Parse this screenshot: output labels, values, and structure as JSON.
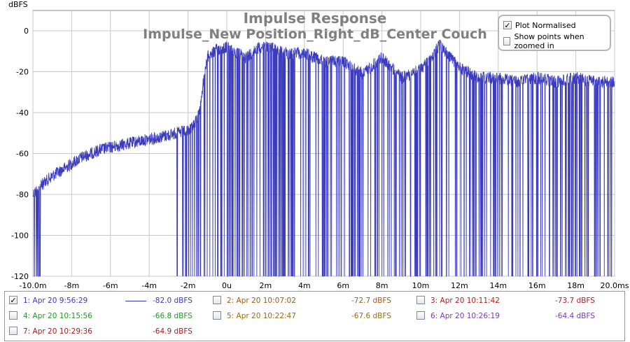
{
  "chart_data": {
    "type": "line",
    "title": "Impulse Response",
    "subtitle": "Impulse_New Position_Right_dB_Center Couch",
    "ylabel": "dBFS",
    "xlabel": "",
    "xlim": [
      -10,
      20
    ],
    "ylim": [
      -120,
      5
    ],
    "x_ticks": [
      -10,
      -8,
      -6,
      -4,
      -2,
      0,
      2,
      4,
      6,
      8,
      10,
      12,
      14,
      16,
      18,
      20
    ],
    "x_tick_labels": [
      "-10.0m",
      "-8m",
      "-6m",
      "-4m",
      "-2m",
      "0u",
      "2m",
      "4m",
      "6m",
      "8m",
      "10m",
      "12m",
      "14m",
      "16m",
      "18m",
      "20.0ms"
    ],
    "y_ticks": [
      0,
      -20,
      -40,
      -60,
      -80,
      -100,
      -120
    ],
    "y_tick_labels": [
      "0",
      "-20",
      "-40",
      "-60",
      "-80",
      "-100",
      "-120"
    ],
    "grid": true,
    "series": [
      {
        "color": "#3b3bc0",
        "envelope": {
          "x": [
            -10,
            -9.5,
            -9,
            -8.5,
            -8,
            -7.5,
            -7,
            -6.5,
            -6,
            -5.5,
            -5,
            -4.5,
            -4,
            -3.5,
            -3,
            -2.6,
            -2,
            -1.5,
            -1,
            -0.5,
            0,
            0.5,
            1,
            1.5,
            2,
            3,
            4,
            5,
            6,
            7,
            8,
            9,
            10,
            11,
            12,
            13,
            14,
            15,
            16,
            17,
            18,
            19,
            20
          ],
          "y": [
            -77,
            -72,
            -68,
            -65,
            -62,
            -59,
            -57,
            -55,
            -54,
            -53,
            -52,
            -51,
            -50,
            -49,
            -48,
            -47,
            -46,
            -40,
            -10,
            -6,
            -5,
            -8,
            -10,
            -6,
            -4,
            -8,
            -8,
            -12,
            -12,
            -18,
            -10,
            -20,
            -16,
            -4,
            -15,
            -20,
            -20,
            -22,
            -20,
            -22,
            -20,
            -22,
            -22
          ]
        }
      }
    ]
  },
  "controls": {
    "plot_normalised": {
      "label": "Plot Normalised",
      "checked": true
    },
    "show_points": {
      "label": "Show points when zoomed in",
      "checked": false
    }
  },
  "legend": [
    {
      "label": "1: Apr 20 9:56:29",
      "value": "-82.0 dBFS",
      "color": "#3b3bc0",
      "checked": true
    },
    {
      "label": "2: Apr 20 10:07:02",
      "value": "-72.7 dBFS",
      "color": "#a05a14",
      "checked": false
    },
    {
      "label": "3: Apr 20 10:11:42",
      "value": "-73.7 dBFS",
      "color": "#b41e1e",
      "checked": false
    },
    {
      "label": "4: Apr 20 10:15:56",
      "value": "-66.8 dBFS",
      "color": "#1e9a1e",
      "checked": false
    },
    {
      "label": "5: Apr 20 10:22:47",
      "value": "-67.6 dBFS",
      "color": "#9a6a14",
      "checked": false
    },
    {
      "label": "6: Apr 20 10:26:19",
      "value": "-64.4 dBFS",
      "color": "#7a3ab0",
      "checked": false
    },
    {
      "label": "7: Apr 20 10:29:36",
      "value": "-64.9 dBFS",
      "color": "#a01e1e",
      "checked": false
    }
  ]
}
